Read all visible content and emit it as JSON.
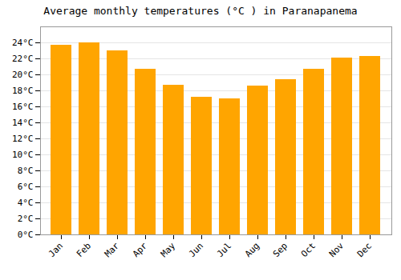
{
  "chart_data": {
    "type": "bar",
    "title": "Average monthly temperatures (°C ) in Paranapanema",
    "categories": [
      "Jan",
      "Feb",
      "Mar",
      "Apr",
      "May",
      "Jun",
      "Jul",
      "Aug",
      "Sep",
      "Oct",
      "Nov",
      "Dec"
    ],
    "values": [
      23.7,
      24.0,
      23.0,
      20.7,
      18.7,
      17.2,
      17.0,
      18.6,
      19.4,
      20.7,
      22.1,
      22.3
    ],
    "color": "#FFA500",
    "ylim": [
      0,
      26
    ],
    "yticks": [
      {
        "value": 0,
        "label": "0°C"
      },
      {
        "value": 2,
        "label": "2°C"
      },
      {
        "value": 4,
        "label": "4°C"
      },
      {
        "value": 6,
        "label": "6°C"
      },
      {
        "value": 8,
        "label": "8°C"
      },
      {
        "value": 10,
        "label": "10°C"
      },
      {
        "value": 12,
        "label": "12°C"
      },
      {
        "value": 14,
        "label": "14°C"
      },
      {
        "value": 16,
        "label": "16°C"
      },
      {
        "value": 18,
        "label": "18°C"
      },
      {
        "value": 20,
        "label": "20°C"
      },
      {
        "value": 22,
        "label": "22°C"
      },
      {
        "value": 24,
        "label": "24°C"
      }
    ],
    "grid": true
  }
}
